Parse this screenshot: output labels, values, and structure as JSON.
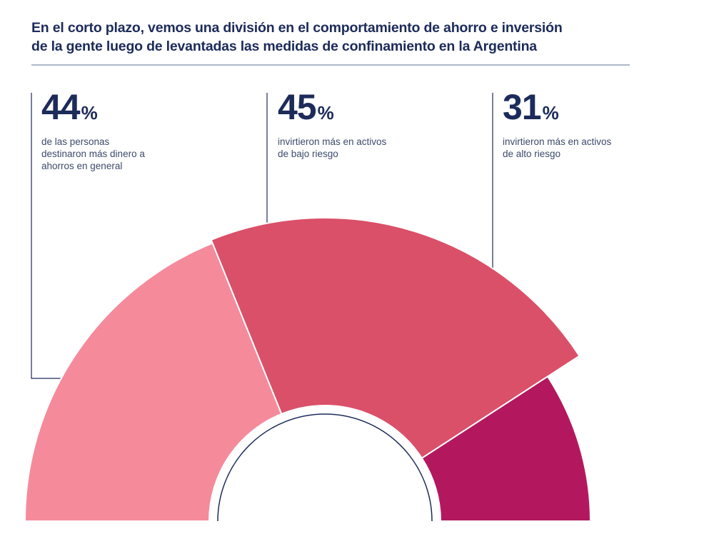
{
  "title": {
    "line1": "En el corto plazo, vemos una división en el comportamiento de ahorro e inversión",
    "line2": "de la gente luego de levantadas las medidas de confinamiento en la Argentina"
  },
  "colors": {
    "navy": "#1c2b5a",
    "rule": "#aeb7c9",
    "segment_light": "#f58a9b",
    "segment_mid": "#da5068",
    "segment_dark": "#b3185e"
  },
  "chart_data": {
    "type": "pie",
    "subtype": "semi-donut",
    "title": "En el corto plazo, vemos una división en el comportamiento de ahorro e inversión de la gente luego de levantadas las medidas de confinamiento en la Argentina",
    "categories": [
      "de las personas destinaron más dinero a ahorros en general",
      "invirtieron más en activos de bajo riesgo",
      "invirtieron más en activos de alto riesgo"
    ],
    "values": [
      44,
      45,
      31
    ],
    "unit": "%",
    "colors": [
      "#f58a9b",
      "#da5068",
      "#b3185e"
    ],
    "legend": "top"
  },
  "stats": [
    {
      "value": "44",
      "unit": "%",
      "desc": [
        "de las personas",
        "destinaron más dinero a",
        "ahorros en general"
      ]
    },
    {
      "value": "45",
      "unit": "%",
      "desc": [
        "invirtieron más en activos",
        "de bajo riesgo"
      ]
    },
    {
      "value": "31",
      "unit": "%",
      "desc": [
        "invirtieron más en activos",
        "de alto riesgo"
      ]
    }
  ]
}
